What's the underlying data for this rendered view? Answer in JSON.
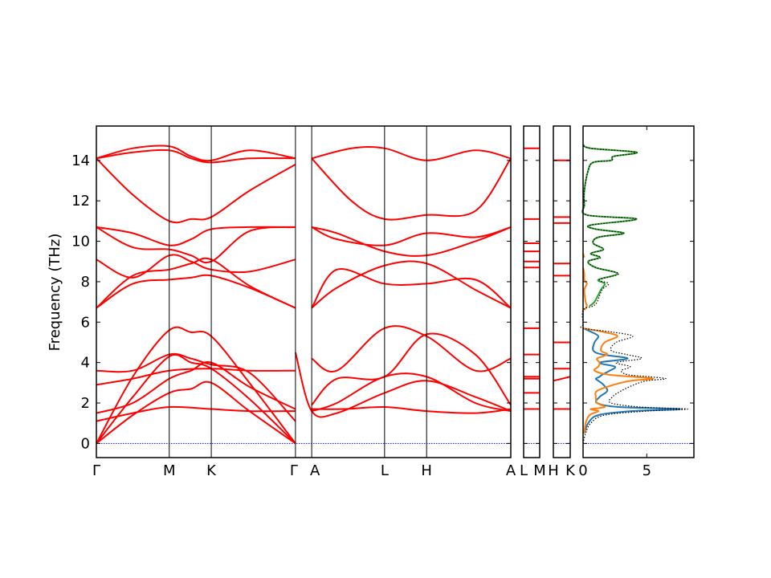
{
  "chart_data": {
    "type": "line",
    "ylabel": "Frequency (THz)",
    "ylim": [
      -0.7,
      15.7
    ],
    "yticks": [
      0,
      2,
      4,
      6,
      8,
      10,
      12,
      14
    ],
    "colors": {
      "bands": "#ff0000",
      "zero_line": "#0000ff",
      "dos_total": "#000000",
      "dos_a": "#1f77b4",
      "dos_b": "#ff7f0e",
      "dos_c": "#2ca02c"
    },
    "band_panels": [
      {
        "points": [
          "Γ",
          "M",
          "K",
          "Γ",
          "A",
          "L",
          "H",
          "A"
        ],
        "point_x": [
          0,
          1,
          1.577,
          2.732,
          2.955,
          3.955,
          4.532,
          5.687
        ],
        "bands": [
          {
            "x": [
              0,
              0.5,
              1,
              1.3,
              1.577,
              2.1,
              2.732
            ],
            "y": [
              0,
              1.4,
              2.5,
              2.7,
              3.0,
              1.6,
              0
            ]
          },
          {
            "x": [
              0,
              0.5,
              1,
              1.3,
              1.577,
              2.1,
              2.732
            ],
            "y": [
              0,
              2.3,
              4.3,
              4.0,
              3.7,
              2.2,
              0
            ]
          },
          {
            "x": [
              0,
              0.5,
              1,
              1.3,
              1.577,
              2.1,
              2.732
            ],
            "y": [
              0,
              3.3,
              5.6,
              5.5,
              5.3,
              3.0,
              0
            ]
          },
          {
            "x": [
              0,
              0.5,
              1,
              1.577,
              2.1,
              2.732
            ],
            "y": [
              1.1,
              1.5,
              1.8,
              1.7,
              1.6,
              1.6
            ]
          },
          {
            "x": [
              0,
              0.5,
              1,
              1.3,
              1.577,
              2.1,
              2.732
            ],
            "y": [
              1.5,
              2.0,
              3.2,
              3.6,
              4.0,
              2.8,
              1.7
            ]
          },
          {
            "x": [
              0,
              0.5,
              1,
              1.577,
              2.1,
              2.732
            ],
            "y": [
              2.9,
              3.2,
              3.6,
              3.7,
              3.6,
              3.6
            ]
          },
          {
            "x": [
              0,
              0.5,
              1,
              1.3,
              1.577,
              2.1,
              2.732
            ],
            "y": [
              3.6,
              3.6,
              4.4,
              4.2,
              3.9,
              3.5,
              1.1
            ]
          },
          {
            "x": [
              0,
              0.5,
              1,
              1.3,
              1.577,
              2.1,
              2.732
            ],
            "y": [
              6.7,
              7.9,
              8.1,
              8.2,
              8.3,
              7.7,
              6.7
            ]
          },
          {
            "x": [
              0,
              0.5,
              1,
              1.3,
              1.577,
              2.1,
              2.732
            ],
            "y": [
              6.7,
              8.3,
              8.6,
              8.9,
              9.1,
              7.8,
              6.7
            ]
          },
          {
            "x": [
              0,
              0.5,
              1,
              1.3,
              1.577,
              2.1,
              2.732
            ],
            "y": [
              9.1,
              8.2,
              9.3,
              9.0,
              8.6,
              8.5,
              9.1
            ]
          },
          {
            "x": [
              0,
              0.5,
              1,
              1.3,
              1.577,
              2.1,
              2.732
            ],
            "y": [
              10.7,
              9.7,
              9.6,
              9.3,
              9.0,
              10.5,
              10.7
            ]
          },
          {
            "x": [
              0,
              0.5,
              1,
              1.3,
              1.577,
              2.1,
              2.732
            ],
            "y": [
              10.7,
              10.4,
              9.8,
              10.1,
              10.6,
              10.7,
              10.7
            ]
          },
          {
            "x": [
              0,
              0.5,
              1,
              1.3,
              1.577,
              2.1,
              2.732
            ],
            "y": [
              14.1,
              12.3,
              11.0,
              11.1,
              11.2,
              12.5,
              13.8
            ]
          },
          {
            "x": [
              0,
              0.5,
              1,
              1.3,
              1.577,
              2.1,
              2.732
            ],
            "y": [
              14.1,
              14.6,
              14.7,
              14.2,
              14.0,
              14.5,
              14.1
            ]
          },
          {
            "x": [
              0,
              0.5,
              1,
              1.3,
              1.577,
              2.1,
              2.732
            ],
            "y": [
              14.1,
              14.4,
              14.5,
              14.1,
              13.9,
              14.1,
              14.1
            ]
          },
          {
            "x": [
              2.732,
              2.955,
              3.3,
              3.955,
              4.532,
              5.2,
              5.687
            ],
            "y": [
              4.5,
              1.6,
              1.5,
              2.5,
              3.1,
              2.3,
              1.6
            ]
          },
          {
            "x": [
              2.955,
              3.3,
              3.955,
              4.532,
              5.2,
              5.687
            ],
            "y": [
              1.6,
              2.0,
              3.3,
              3.3,
              2.0,
              1.6
            ]
          },
          {
            "x": [
              2.955,
              3.4,
              3.955,
              4.532,
              5.2,
              5.687
            ],
            "y": [
              1.7,
              1.7,
              1.8,
              1.6,
              1.5,
              1.7
            ]
          },
          {
            "x": [
              2.955,
              3.3,
              3.955,
              4.532,
              5.2,
              5.687
            ],
            "y": [
              4.2,
              3.6,
              5.7,
              5.3,
              3.6,
              4.2
            ]
          },
          {
            "x": [
              2.955,
              3.3,
              3.955,
              4.532,
              5.2,
              5.687
            ],
            "y": [
              1.9,
              3.2,
              3.3,
              5.4,
              4.4,
              1.9
            ]
          },
          {
            "x": [
              2.955,
              3.3,
              3.955,
              4.532,
              5.2,
              5.687
            ],
            "y": [
              6.7,
              8.6,
              7.9,
              7.9,
              8.1,
              6.7
            ]
          },
          {
            "x": [
              2.955,
              3.3,
              3.955,
              4.532,
              5.2,
              5.687
            ],
            "y": [
              6.7,
              7.7,
              8.8,
              8.9,
              7.6,
              6.7
            ]
          },
          {
            "x": [
              2.955,
              3.3,
              3.955,
              4.532,
              5.2,
              5.687
            ],
            "y": [
              10.7,
              10.1,
              9.8,
              10.4,
              10.2,
              10.7
            ]
          },
          {
            "x": [
              2.955,
              3.3,
              3.955,
              4.532,
              5.2,
              5.687
            ],
            "y": [
              10.7,
              10.4,
              9.5,
              9.3,
              10.0,
              10.7
            ]
          },
          {
            "x": [
              2.955,
              3.5,
              3.955,
              4.532,
              5.2,
              5.687
            ],
            "y": [
              14.1,
              12.0,
              11.1,
              11.3,
              11.5,
              14.1
            ]
          },
          {
            "x": [
              2.955,
              3.5,
              3.955,
              4.532,
              5.2,
              5.687
            ],
            "y": [
              14.1,
              14.6,
              14.6,
              14.0,
              14.5,
              14.1
            ]
          }
        ]
      },
      {
        "points": [
          "L",
          "M"
        ],
        "point_x": [
          0,
          1
        ],
        "bands": [
          {
            "x": [
              0,
              1
            ],
            "y": [
              1.7,
              1.7
            ]
          },
          {
            "x": [
              0,
              1
            ],
            "y": [
              2.5,
              2.5
            ]
          },
          {
            "x": [
              0,
              1
            ],
            "y": [
              3.2,
              3.2
            ]
          },
          {
            "x": [
              0,
              1
            ],
            "y": [
              3.3,
              3.3
            ]
          },
          {
            "x": [
              0,
              1
            ],
            "y": [
              4.4,
              4.4
            ]
          },
          {
            "x": [
              0,
              1
            ],
            "y": [
              5.7,
              5.7
            ]
          },
          {
            "x": [
              0,
              1
            ],
            "y": [
              8.7,
              8.7
            ]
          },
          {
            "x": [
              0,
              1
            ],
            "y": [
              9.0,
              9.0
            ]
          },
          {
            "x": [
              0,
              1
            ],
            "y": [
              9.5,
              9.5
            ]
          },
          {
            "x": [
              0,
              1
            ],
            "y": [
              9.9,
              9.9
            ]
          },
          {
            "x": [
              0,
              1
            ],
            "y": [
              11.1,
              11.1
            ]
          },
          {
            "x": [
              0,
              1
            ],
            "y": [
              14.6,
              14.6
            ]
          }
        ]
      },
      {
        "points": [
          "H",
          "K"
        ],
        "point_x": [
          0,
          1
        ],
        "bands": [
          {
            "x": [
              0,
              1
            ],
            "y": [
              1.7,
              1.7
            ]
          },
          {
            "x": [
              0,
              1
            ],
            "y": [
              3.1,
              3.3
            ]
          },
          {
            "x": [
              0,
              1
            ],
            "y": [
              3.7,
              3.7
            ]
          },
          {
            "x": [
              0,
              1
            ],
            "y": [
              5.0,
              5.0
            ]
          },
          {
            "x": [
              0,
              1
            ],
            "y": [
              8.3,
              8.3
            ]
          },
          {
            "x": [
              0,
              1
            ],
            "y": [
              8.9,
              8.9
            ]
          },
          {
            "x": [
              0,
              1
            ],
            "y": [
              10.9,
              10.9
            ]
          },
          {
            "x": [
              0,
              1
            ],
            "y": [
              11.2,
              11.2
            ]
          },
          {
            "x": [
              0,
              1
            ],
            "y": [
              14.0,
              14.0
            ]
          }
        ]
      }
    ],
    "dos": {
      "xlim": [
        0,
        8.7
      ],
      "xticks": [
        0,
        5
      ],
      "freq": [
        0,
        0.5,
        1.0,
        1.4,
        1.6,
        1.7,
        1.8,
        2.0,
        2.3,
        2.6,
        2.9,
        3.1,
        3.2,
        3.3,
        3.4,
        3.6,
        3.8,
        4.0,
        4.2,
        4.4,
        4.6,
        5.0,
        5.3,
        5.5,
        5.7,
        5.9,
        6.6,
        6.8,
        7.0,
        7.6,
        7.9,
        8.1,
        8.4,
        8.7,
        9.0,
        9.2,
        9.4,
        9.6,
        9.9,
        10.2,
        10.4,
        10.6,
        10.8,
        11.1,
        11.3,
        11.8,
        12.5,
        13.5,
        13.9,
        14.0,
        14.2,
        14.4,
        14.6,
        14.8
      ],
      "total": [
        0,
        0.2,
        0.6,
        1.7,
        5.0,
        8.2,
        4.5,
        2.2,
        2.3,
        3.0,
        4.0,
        5.0,
        6.5,
        5.2,
        3.5,
        3.0,
        3.7,
        2.6,
        4.6,
        3.4,
        2.2,
        2.6,
        3.9,
        2.4,
        0,
        0,
        0,
        0.8,
        1.1,
        1.5,
        2.0,
        1.3,
        2.8,
        1.0,
        0.4,
        1.4,
        0.6,
        1.6,
        0.8,
        1.2,
        3.2,
        1.0,
        0.6,
        4.2,
        0.3,
        0.1,
        0.1,
        0.4,
        0.8,
        2.2,
        2.4,
        4.2,
        0.6,
        0
      ],
      "partials": [
        {
          "values": [
            0,
            0.1,
            0.4,
            1.2,
            3.8,
            7.6,
            2.8,
            1.1,
            1.3,
            1.9,
            1.6,
            1.2,
            1.0,
            1.3,
            1.5,
            2.1,
            2.5,
            1.3,
            3.5,
            1.5,
            0.8,
            0.9,
            1.2,
            0.7,
            0,
            0,
            0,
            0,
            0,
            0,
            0,
            0,
            0,
            0,
            0,
            0,
            0,
            0,
            0,
            0,
            0,
            0,
            0,
            0,
            0,
            0,
            0,
            0,
            0,
            0,
            0,
            0,
            0,
            0
          ]
        },
        {
          "values": [
            0,
            0.1,
            0.2,
            0.5,
            1.2,
            0.6,
            1.7,
            1.1,
            1.0,
            1.1,
            2.4,
            3.8,
            5.5,
            3.9,
            2.0,
            0.9,
            1.2,
            1.3,
            1.1,
            1.9,
            1.4,
            1.7,
            2.7,
            1.7,
            0,
            0,
            0.1,
            0.3,
            0.2,
            0.1,
            0.3,
            0.1,
            0.1,
            0,
            0,
            0.1,
            0,
            0,
            0,
            0,
            0,
            0,
            0,
            0,
            0,
            0,
            0,
            0,
            0,
            0,
            0,
            0,
            0,
            0
          ]
        },
        {
          "values": [
            0,
            0,
            0,
            0,
            0,
            0,
            0,
            0,
            0,
            0,
            0,
            0,
            0,
            0,
            0,
            0,
            0,
            0,
            0,
            0,
            0,
            0,
            0,
            0,
            0,
            0,
            0,
            0.5,
            0.9,
            1.4,
            1.7,
            1.2,
            2.7,
            1.0,
            0.4,
            1.3,
            0.6,
            1.6,
            0.8,
            1.2,
            3.2,
            1.0,
            0.6,
            4.2,
            0.3,
            0.1,
            0.1,
            0.4,
            0.8,
            2.2,
            2.4,
            4.2,
            0.6,
            0
          ]
        }
      ]
    }
  }
}
